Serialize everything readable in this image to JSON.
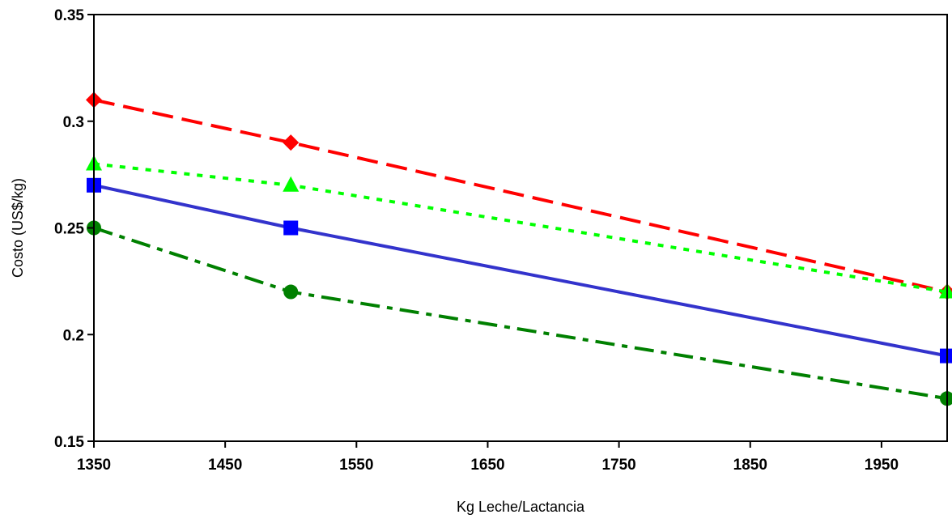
{
  "chart_data": {
    "type": "line",
    "title": "",
    "xlabel": "Kg Leche/Lactancia",
    "ylabel": "Costo (US$/kg)",
    "xlim": [
      1350,
      2000
    ],
    "ylim": [
      0.15,
      0.35
    ],
    "x_ticks": [
      1350,
      1450,
      1550,
      1650,
      1750,
      1850,
      1950
    ],
    "x_tick_labels": [
      "1350",
      "1450",
      "1550",
      "1650",
      "1750",
      "1850",
      "1950"
    ],
    "y_ticks": [
      0.15,
      0.2,
      0.25,
      0.3,
      0.35
    ],
    "y_tick_labels": [
      "0.15",
      "0.2",
      "0.25",
      "0.3",
      "0.35"
    ],
    "grid": false,
    "legend": "none",
    "x": [
      1350,
      1500,
      2000
    ],
    "series": [
      {
        "values": [
          0.31,
          0.29,
          0.22
        ],
        "color": "#ff0000",
        "marker": "diamond",
        "dash": "long-dash"
      },
      {
        "values": [
          0.28,
          0.27,
          0.22
        ],
        "color": "#00ff00",
        "marker": "triangle",
        "dash": "dot"
      },
      {
        "values": [
          0.27,
          0.25,
          0.19
        ],
        "color": "#3333cc",
        "marker_color": "#0000ff",
        "marker": "square",
        "dash": "solid"
      },
      {
        "values": [
          0.25,
          0.22,
          0.17
        ],
        "color": "#008000",
        "marker": "circle",
        "dash": "dash-dot"
      }
    ]
  }
}
